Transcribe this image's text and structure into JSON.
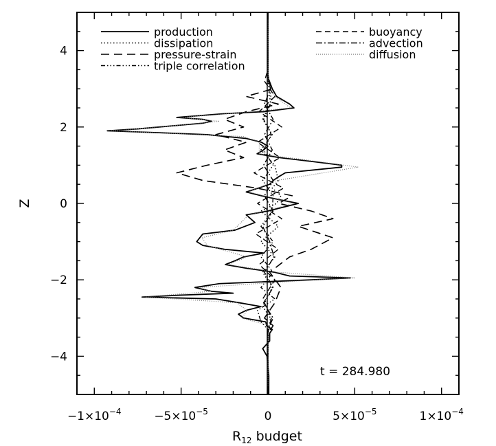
{
  "chart_data": {
    "type": "line",
    "title": "",
    "xlabel": "R",
    "xlabel_sub": "12",
    "xlabel_suffix": " budget",
    "ylabel": "Z",
    "xlim": [
      -0.00011,
      0.00011
    ],
    "ylim": [
      -5,
      5
    ],
    "grid": false,
    "legend_position": "top",
    "x_ticks": [
      {
        "value": -0.0001,
        "mant": "−1×10",
        "exp": "−4"
      },
      {
        "value": -5e-05,
        "mant": "−5×10",
        "exp": "−5"
      },
      {
        "value": 0,
        "mant": "0",
        "exp": ""
      },
      {
        "value": 5e-05,
        "mant": "5×10",
        "exp": "−5"
      },
      {
        "value": 0.0001,
        "mant": "1×10",
        "exp": "−4"
      }
    ],
    "y_ticks": [
      {
        "value": -4,
        "label": "−4"
      },
      {
        "value": -2,
        "label": "−2"
      },
      {
        "value": 0,
        "label": "0"
      },
      {
        "value": 2,
        "label": "2"
      },
      {
        "value": 4,
        "label": "4"
      }
    ],
    "annotation": "t = 284.980",
    "series": [
      {
        "name": "production",
        "dash": "none",
        "stroke_width": 1.8,
        "color": "#000000",
        "points": [
          [
            -5,
            5e-07
          ],
          [
            -4.5,
            5e-07
          ],
          [
            -4,
            -5e-07
          ],
          [
            -3.8,
            -3e-06
          ],
          [
            -3.6,
            1e-06
          ],
          [
            -3.4,
            1e-06
          ],
          [
            -3.3,
            2.5e-06
          ],
          [
            -3.2,
            -7.5e-07
          ],
          [
            -3.1,
            -1.25e-06
          ],
          [
            -3,
            -1.4e-05
          ],
          [
            -2.9,
            -1.7e-05
          ],
          [
            -2.8,
            -1.25e-05
          ],
          [
            -2.7,
            -4e-06
          ],
          [
            -2.6,
            -1.65e-05
          ],
          [
            -2.5,
            -3e-05
          ],
          [
            -2.45,
            -7.25e-05
          ],
          [
            -2.4,
            -5e-05
          ],
          [
            -2.35,
            -2e-05
          ],
          [
            -2.3,
            -3.25e-05
          ],
          [
            -2.2,
            -4.2e-05
          ],
          [
            -2.1,
            -2.8e-05
          ],
          [
            -2,
            2.5e-05
          ],
          [
            -1.95,
            4.75e-05
          ],
          [
            -1.9,
            1.25e-05
          ],
          [
            -1.8,
            3.75e-06
          ],
          [
            -1.7,
            -1.2e-05
          ],
          [
            -1.6,
            -2.45e-05
          ],
          [
            -1.5,
            -1.9e-05
          ],
          [
            -1.4,
            -1.4e-05
          ],
          [
            -1.3,
            -2.25e-06
          ],
          [
            -1.2,
            -2.5e-05
          ],
          [
            -1.1,
            -3.75e-05
          ],
          [
            -1,
            -4.1e-05
          ],
          [
            -0.8,
            -3.75e-05
          ],
          [
            -0.7,
            -1.9e-05
          ],
          [
            -0.5,
            -7.5e-06
          ],
          [
            -0.3,
            -1.25e-05
          ],
          [
            -0.2,
            0
          ],
          [
            0,
            1.75e-05
          ],
          [
            0.1,
            6.25e-06
          ],
          [
            0.2,
            -3.75e-06
          ],
          [
            0.3,
            -1.25e-05
          ],
          [
            0.4,
            -5.5e-06
          ],
          [
            0.5,
            1e-06
          ],
          [
            0.6,
            3e-06
          ],
          [
            0.7,
            6.25e-06
          ],
          [
            0.8,
            1e-05
          ],
          [
            0.95,
            4.25e-05
          ],
          [
            1,
            4.25e-05
          ],
          [
            1.1,
            2.5e-05
          ],
          [
            1.2,
            6.25e-06
          ],
          [
            1.3,
            -6.25e-06
          ],
          [
            1.4,
            -2.5e-06
          ],
          [
            1.5,
            0
          ],
          [
            1.6,
            -3.75e-06
          ],
          [
            1.7,
            -1.25e-05
          ],
          [
            1.8,
            -3.5e-05
          ],
          [
            1.85,
            -6.25e-05
          ],
          [
            1.9,
            -9.25e-05
          ],
          [
            1.95,
            -7.5e-05
          ],
          [
            2,
            -6.25e-05
          ],
          [
            2.1,
            -3.75e-05
          ],
          [
            2.15,
            -3.25e-05
          ],
          [
            2.2,
            -3.75e-05
          ],
          [
            2.25,
            -5.25e-05
          ],
          [
            2.35,
            -2.5e-05
          ],
          [
            2.4,
            -2.5e-06
          ],
          [
            2.5,
            1.5e-05
          ],
          [
            2.6,
            1.25e-05
          ],
          [
            2.8,
            5e-06
          ],
          [
            3,
            2.5e-06
          ],
          [
            3.3,
            0
          ],
          [
            3.5,
            0
          ],
          [
            5,
            0
          ]
        ]
      },
      {
        "name": "dissipation",
        "dash": "1.5,3",
        "stroke_width": 1.6,
        "color": "#000000",
        "points": [
          [
            -5,
            0
          ],
          [
            -3.5,
            0
          ],
          [
            -3,
            1.5e-06
          ],
          [
            -2.7,
            -3e-06
          ],
          [
            -2.2,
            2.5e-06
          ],
          [
            -1.8,
            -3e-06
          ],
          [
            -1.4,
            4e-06
          ],
          [
            -1,
            -4e-06
          ],
          [
            -0.6,
            6e-06
          ],
          [
            -0.2,
            -4e-06
          ],
          [
            0,
            5e-06
          ],
          [
            0.2,
            7.5e-06
          ],
          [
            0.4,
            2.5e-06
          ],
          [
            0.6,
            6e-06
          ],
          [
            1,
            4e-06
          ],
          [
            1.4,
            -4e-06
          ],
          [
            1.8,
            2.5e-06
          ],
          [
            2.2,
            -3e-06
          ],
          [
            2.7,
            2e-06
          ],
          [
            3.3,
            0
          ],
          [
            5,
            0
          ]
        ]
      },
      {
        "name": "pressure-strain",
        "dash": "12,7",
        "stroke_width": 1.6,
        "color": "#000000",
        "points": [
          [
            -5,
            0
          ],
          [
            -3.4,
            0
          ],
          [
            -3.2,
            3e-06
          ],
          [
            -3,
            -2e-06
          ],
          [
            -2.6,
            4e-06
          ],
          [
            -2.2,
            7.5e-06
          ],
          [
            -1.8,
            1e-06
          ],
          [
            -1.4,
            1.25e-05
          ],
          [
            -1.2,
            2.5e-05
          ],
          [
            -0.9,
            3.75e-05
          ],
          [
            -0.6,
            1.75e-05
          ],
          [
            -0.4,
            3.75e-05
          ],
          [
            -0.2,
            2.5e-05
          ],
          [
            0,
            6.25e-06
          ],
          [
            0.2,
            1.4e-05
          ],
          [
            0.4,
            -6.25e-06
          ],
          [
            0.6,
            -3.75e-05
          ],
          [
            0.8,
            -5.25e-05
          ],
          [
            1,
            -3.5e-05
          ],
          [
            1.2,
            -1.4e-05
          ],
          [
            1.4,
            -2.5e-05
          ],
          [
            1.6,
            -1.25e-05
          ],
          [
            1.8,
            -3e-05
          ],
          [
            2,
            -1.4e-05
          ],
          [
            2.2,
            -2.5e-05
          ],
          [
            2.4,
            -1.25e-05
          ],
          [
            2.6,
            6e-06
          ],
          [
            2.8,
            -1.25e-05
          ],
          [
            3,
            3e-06
          ],
          [
            3.2,
            0
          ],
          [
            5,
            0
          ]
        ]
      },
      {
        "name": "triple correlation",
        "dash": "6,3,1.5,3,1.5,3,1.5,3",
        "stroke_width": 1.4,
        "color": "#000000",
        "points": [
          [
            -5,
            0
          ],
          [
            -3.3,
            0
          ],
          [
            -3.1,
            -4e-06
          ],
          [
            -2.8,
            -6e-06
          ],
          [
            -2.5,
            4e-06
          ],
          [
            -2.2,
            -4e-06
          ],
          [
            -1.8,
            3e-06
          ],
          [
            -1.4,
            -4e-06
          ],
          [
            -1,
            3e-06
          ],
          [
            -0.6,
            -4e-06
          ],
          [
            -0.2,
            2.5e-06
          ],
          [
            0.2,
            3e-06
          ],
          [
            0.6,
            -3e-06
          ],
          [
            1,
            3e-06
          ],
          [
            1.4,
            -2.5e-06
          ],
          [
            1.8,
            2e-06
          ],
          [
            2.2,
            -2.5e-06
          ],
          [
            2.6,
            1.5e-06
          ],
          [
            3.2,
            0
          ],
          [
            5,
            0
          ]
        ]
      },
      {
        "name": "buoyancy",
        "dash": "8,5",
        "stroke_width": 1.4,
        "color": "#000000",
        "points": [
          [
            -5,
            0
          ],
          [
            -3.4,
            0
          ],
          [
            -3,
            2e-06
          ],
          [
            -2.5,
            -3e-06
          ],
          [
            -2,
            4e-06
          ],
          [
            -1.6,
            -5e-06
          ],
          [
            -1.2,
            6e-06
          ],
          [
            -0.8,
            -7e-06
          ],
          [
            -0.4,
            8e-06
          ],
          [
            0,
            -6e-06
          ],
          [
            0.4,
            9e-06
          ],
          [
            0.8,
            -8e-06
          ],
          [
            1.2,
            7e-06
          ],
          [
            1.6,
            -6e-06
          ],
          [
            2,
            8e-06
          ],
          [
            2.4,
            -5e-06
          ],
          [
            2.8,
            4e-06
          ],
          [
            3.2,
            -2e-06
          ],
          [
            3.5,
            0
          ],
          [
            5,
            0
          ]
        ]
      },
      {
        "name": "advection",
        "dash": "9,3,2,3",
        "stroke_width": 1.4,
        "color": "#000000",
        "points": [
          [
            -5,
            0
          ],
          [
            -3.3,
            0
          ],
          [
            -3,
            3e-06
          ],
          [
            -2.6,
            -2.5e-06
          ],
          [
            -2.2,
            3e-06
          ],
          [
            -1.8,
            -2e-06
          ],
          [
            -1.4,
            3.5e-06
          ],
          [
            -1,
            1e-06
          ],
          [
            -0.6,
            -3e-06
          ],
          [
            -0.2,
            3e-06
          ],
          [
            0.2,
            -2e-06
          ],
          [
            0.6,
            3e-06
          ],
          [
            1,
            -2.5e-06
          ],
          [
            1.4,
            2.5e-06
          ],
          [
            1.8,
            -2e-06
          ],
          [
            2.2,
            3e-06
          ],
          [
            2.6,
            -2e-06
          ],
          [
            3,
            1.5e-06
          ],
          [
            3.4,
            0
          ],
          [
            5,
            0
          ]
        ]
      },
      {
        "name": "diffusion",
        "dash": "1,2",
        "stroke_width": 1.2,
        "color": "#777777",
        "points": [
          [
            -5,
            0
          ],
          [
            -3.5,
            0
          ],
          [
            -3.2,
            1e-06
          ],
          [
            -3,
            -1.5e-05
          ],
          [
            -2.8,
            -1.2e-05
          ],
          [
            -2.6,
            -1.8e-05
          ],
          [
            -2.45,
            -7.05e-05
          ],
          [
            -2.3,
            -3.3e-05
          ],
          [
            -2.2,
            -4e-05
          ],
          [
            -2,
            2.75e-05
          ],
          [
            -1.95,
            5e-05
          ],
          [
            -1.8,
            5e-06
          ],
          [
            -1.6,
            -2.3e-05
          ],
          [
            -1.4,
            -1.2e-05
          ],
          [
            -1.1,
            -3.5e-05
          ],
          [
            -0.9,
            -3.8e-05
          ],
          [
            -0.7,
            -2e-05
          ],
          [
            -0.3,
            -1.1e-05
          ],
          [
            0,
            1.5e-05
          ],
          [
            0.3,
            -1.1e-05
          ],
          [
            0.6,
            5e-06
          ],
          [
            0.95,
            5.2e-05
          ],
          [
            1.1,
            2.8e-05
          ],
          [
            1.3,
            -5e-06
          ],
          [
            1.6,
            -5e-06
          ],
          [
            1.75,
            -1.4e-05
          ],
          [
            1.9,
            -9e-05
          ],
          [
            2,
            -6.2e-05
          ],
          [
            2.15,
            -2.8e-05
          ],
          [
            2.25,
            -5e-05
          ],
          [
            2.35,
            -2.2e-05
          ],
          [
            2.5,
            1.3e-05
          ],
          [
            2.8,
            4e-06
          ],
          [
            3.2,
            0
          ],
          [
            5,
            0
          ]
        ]
      }
    ]
  }
}
